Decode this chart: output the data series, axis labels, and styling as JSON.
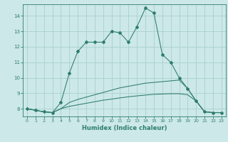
{
  "xlabel": "Humidex (Indice chaleur)",
  "bg_color": "#cce8e8",
  "grid_color": "#aacfcf",
  "line_color": "#2e7d6e",
  "xlim": [
    -0.5,
    23.5
  ],
  "ylim": [
    7.5,
    14.75
  ],
  "xticks": [
    0,
    1,
    2,
    3,
    4,
    5,
    6,
    7,
    8,
    9,
    10,
    11,
    12,
    13,
    14,
    15,
    16,
    17,
    18,
    19,
    20,
    21,
    22,
    23
  ],
  "yticks": [
    8,
    9,
    10,
    11,
    12,
    13,
    14
  ],
  "series1_x": [
    0,
    1,
    2,
    3,
    4,
    5,
    6,
    7,
    8,
    9,
    10,
    11,
    12,
    13,
    14,
    15,
    16,
    17,
    18,
    19,
    20,
    21,
    22,
    23
  ],
  "series1_y": [
    8.0,
    7.9,
    7.8,
    7.75,
    8.4,
    10.3,
    11.7,
    12.3,
    12.3,
    12.3,
    13.0,
    12.9,
    12.3,
    13.3,
    14.5,
    14.2,
    11.5,
    11.0,
    10.0,
    9.3,
    8.5,
    7.8,
    7.75,
    7.75
  ],
  "series2_x": [
    0,
    1,
    2,
    3,
    4,
    5,
    6,
    7,
    8,
    9,
    10,
    11,
    12,
    13,
    14,
    15,
    16,
    17,
    18,
    19,
    20,
    21,
    22,
    23
  ],
  "series2_y": [
    8.0,
    7.9,
    7.8,
    7.75,
    8.0,
    8.4,
    8.6,
    8.75,
    8.9,
    9.05,
    9.2,
    9.35,
    9.45,
    9.55,
    9.65,
    9.7,
    9.75,
    9.8,
    9.85,
    9.3,
    8.5,
    7.8,
    7.75,
    7.75
  ],
  "series3_x": [
    0,
    1,
    2,
    3,
    4,
    5,
    6,
    7,
    8,
    9,
    10,
    11,
    12,
    13,
    14,
    15,
    16,
    17,
    18,
    19,
    20,
    21,
    22,
    23
  ],
  "series3_y": [
    8.0,
    7.9,
    7.8,
    7.75,
    8.0,
    8.15,
    8.25,
    8.35,
    8.45,
    8.55,
    8.62,
    8.7,
    8.77,
    8.83,
    8.88,
    8.93,
    8.95,
    8.97,
    8.97,
    8.9,
    8.5,
    7.8,
    7.75,
    7.75
  ]
}
